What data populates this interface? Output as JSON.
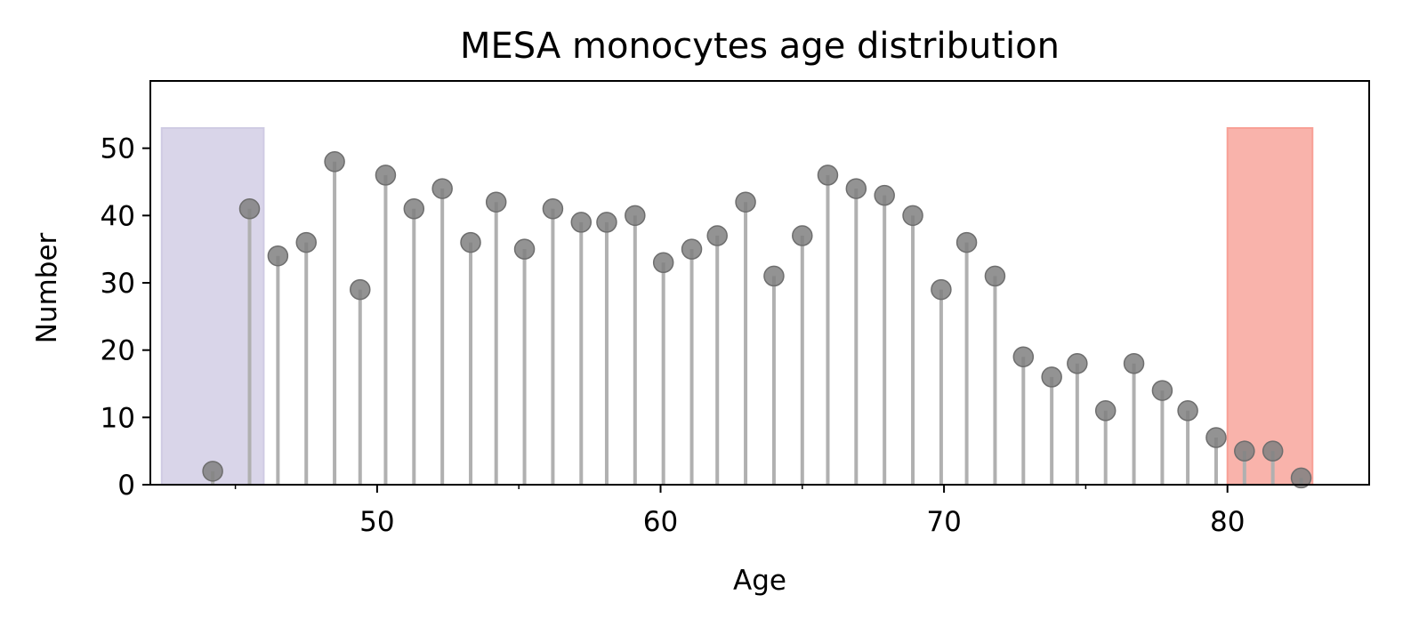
{
  "chart_data": {
    "type": "lollipop",
    "title": "MESA monocytes age distribution",
    "xlabel": "Age",
    "ylabel": "Number",
    "xlim": [
      42,
      85
    ],
    "ylim": [
      0,
      60
    ],
    "xticks": [
      50,
      60,
      70,
      80
    ],
    "xminorticks": [
      45,
      55,
      65,
      75
    ],
    "yticks": [
      0,
      10,
      20,
      30,
      40,
      50
    ],
    "grid": false,
    "stem_color": "#b0b0b0",
    "marker_color": "#808080",
    "points": [
      {
        "x": 44.2,
        "y": 2
      },
      {
        "x": 45.5,
        "y": 41
      },
      {
        "x": 46.5,
        "y": 34
      },
      {
        "x": 47.5,
        "y": 36
      },
      {
        "x": 48.5,
        "y": 48
      },
      {
        "x": 49.4,
        "y": 29
      },
      {
        "x": 50.3,
        "y": 46
      },
      {
        "x": 51.3,
        "y": 41
      },
      {
        "x": 52.3,
        "y": 44
      },
      {
        "x": 53.3,
        "y": 36
      },
      {
        "x": 54.2,
        "y": 42
      },
      {
        "x": 55.2,
        "y": 35
      },
      {
        "x": 56.2,
        "y": 41
      },
      {
        "x": 57.2,
        "y": 39
      },
      {
        "x": 58.1,
        "y": 39
      },
      {
        "x": 59.1,
        "y": 40
      },
      {
        "x": 60.1,
        "y": 33
      },
      {
        "x": 61.1,
        "y": 35
      },
      {
        "x": 62.0,
        "y": 37
      },
      {
        "x": 63.0,
        "y": 42
      },
      {
        "x": 64.0,
        "y": 31
      },
      {
        "x": 65.0,
        "y": 37
      },
      {
        "x": 65.9,
        "y": 46
      },
      {
        "x": 66.9,
        "y": 44
      },
      {
        "x": 67.9,
        "y": 43
      },
      {
        "x": 68.9,
        "y": 40
      },
      {
        "x": 69.9,
        "y": 29
      },
      {
        "x": 70.8,
        "y": 36
      },
      {
        "x": 71.8,
        "y": 31
      },
      {
        "x": 72.8,
        "y": 19
      },
      {
        "x": 73.8,
        "y": 16
      },
      {
        "x": 74.7,
        "y": 18
      },
      {
        "x": 75.7,
        "y": 11
      },
      {
        "x": 76.7,
        "y": 18
      },
      {
        "x": 77.7,
        "y": 14
      },
      {
        "x": 78.6,
        "y": 11
      },
      {
        "x": 79.6,
        "y": 7
      },
      {
        "x": 80.6,
        "y": 5
      },
      {
        "x": 81.6,
        "y": 5
      },
      {
        "x": 82.6,
        "y": 1
      }
    ],
    "highlight_regions": [
      {
        "x0": 42.4,
        "x1": 46.0,
        "height": 53,
        "color": "#cfcbe3"
      },
      {
        "x0": 80.0,
        "x1": 83.0,
        "height": 53,
        "color": "#f8a096"
      }
    ]
  }
}
